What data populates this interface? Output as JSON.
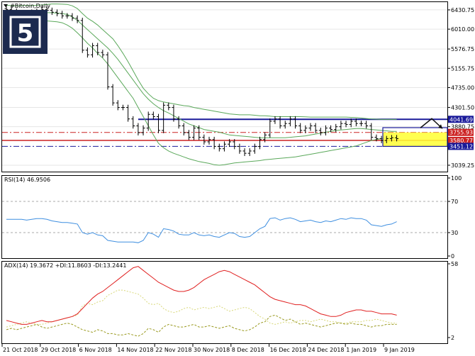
{
  "chart_data": {
    "type": "financial-chart",
    "title": "#Bitcoin,Daily",
    "price_axis_ticks": [
      "6430.75",
      "6010.00",
      "5576.75",
      "5155.75",
      "4735.00",
      "4301.50",
      "3880.75",
      "3039.25"
    ],
    "price_range": [
      2900,
      6600
    ],
    "x_tick_labels": [
      "21 Oct 2018",
      "29 Oct 2018",
      "6 Nov 2018",
      "14 Nov 2018",
      "22 Nov 2018",
      "30 Nov 2018",
      "8 Dec 2018",
      "16 Dec 2018",
      "24 Dec 2018",
      "1 Jan 2019",
      "9 Jan 2019"
    ],
    "candles_close": [
      6440,
      6400,
      6300,
      6320,
      6300,
      6380,
      6400,
      6440,
      6420,
      6380,
      6350,
      6300,
      6300,
      6250,
      6200,
      5550,
      5450,
      5650,
      5500,
      5450,
      4750,
      4400,
      4300,
      4300,
      4050,
      3900,
      3750,
      3850,
      4150,
      4100,
      3800,
      4350,
      4300,
      4050,
      3900,
      3750,
      3650,
      3850,
      3650,
      3550,
      3600,
      3450,
      3400,
      3500,
      3550,
      3450,
      3350,
      3300,
      3350,
      3450,
      3600,
      3700,
      4000,
      4050,
      3900,
      3950,
      4050,
      3900,
      3800,
      3850,
      3900,
      3800,
      3750,
      3850,
      3820,
      3880,
      3950,
      3930,
      4000,
      3950,
      3950,
      3900,
      3650,
      3620,
      3580,
      3620,
      3640,
      3620
    ],
    "bollinger_upper": [
      6530,
      6525,
      6520,
      6525,
      6525,
      6525,
      6530,
      6540,
      6550,
      6560,
      6560,
      6555,
      6550,
      6520,
      6460,
      6350,
      6250,
      6180,
      6100,
      6000,
      5900,
      5800,
      5650,
      5480,
      5300,
      5100,
      4900,
      4720,
      4600,
      4500,
      4450,
      4420,
      4400,
      4380,
      4360,
      4340,
      4330,
      4300,
      4280,
      4260,
      4240,
      4220,
      4200,
      4180,
      4160,
      4150,
      4140,
      4140,
      4140,
      4130,
      4120,
      4120,
      4110,
      4100,
      4100,
      4100,
      4100,
      4100,
      4100,
      4095,
      4090,
      4090,
      4090,
      4090,
      4090,
      4090,
      4090,
      4090,
      4085,
      4080,
      4070,
      4060,
      4050,
      4045,
      4040,
      4040,
      4040,
      4040
    ],
    "bollinger_middle": [
      6380,
      6380,
      6380,
      6380,
      6370,
      6370,
      6370,
      6370,
      6370,
      6370,
      6360,
      6350,
      6330,
      6280,
      6200,
      6100,
      6000,
      5900,
      5800,
      5700,
      5600,
      5480,
      5350,
      5200,
      5050,
      4900,
      4750,
      4600,
      4480,
      4380,
      4300,
      4230,
      4180,
      4120,
      4060,
      4000,
      3940,
      3900,
      3860,
      3820,
      3800,
      3780,
      3760,
      3730,
      3700,
      3690,
      3680,
      3670,
      3660,
      3650,
      3640,
      3640,
      3640,
      3640,
      3640,
      3640,
      3650,
      3660,
      3670,
      3680,
      3700,
      3720,
      3740,
      3760,
      3780,
      3800,
      3810,
      3820,
      3830,
      3840,
      3840,
      3830,
      3820,
      3810,
      3800,
      3790,
      3780,
      3780
    ],
    "bollinger_lower": [
      6250,
      6240,
      6230,
      6230,
      6220,
      6215,
      6210,
      6200,
      6190,
      6180,
      6170,
      6150,
      6100,
      6030,
      5930,
      5820,
      5700,
      5600,
      5480,
      5380,
      5250,
      5100,
      4950,
      4800,
      4650,
      4500,
      4300,
      4100,
      3900,
      3700,
      3520,
      3420,
      3350,
      3300,
      3260,
      3220,
      3180,
      3150,
      3120,
      3100,
      3080,
      3050,
      3040,
      3050,
      3070,
      3090,
      3100,
      3110,
      3120,
      3130,
      3140,
      3160,
      3170,
      3180,
      3190,
      3200,
      3210,
      3220,
      3240,
      3260,
      3280,
      3300,
      3320,
      3340,
      3360,
      3380,
      3400,
      3420,
      3440,
      3460,
      3500,
      3540,
      3580,
      3600,
      3620,
      3630,
      3640,
      3640
    ],
    "levels": [
      {
        "price": "4041.69",
        "color": "#1a1a9a",
        "style": "dash-dot"
      },
      {
        "price": "3755.93",
        "color": "#cc2222",
        "style": "dash-dot"
      },
      {
        "price": "3580.77",
        "color": "#cc2222",
        "style": "solid"
      },
      {
        "price": "3451.12",
        "color": "#1a1a9a",
        "style": "dash-dot"
      }
    ],
    "rsi": {
      "label": "RSI(14) 46.9506",
      "axis_ticks": [
        "100",
        "70",
        "30",
        "0"
      ],
      "values": [
        47,
        47,
        47,
        47,
        46,
        47,
        48,
        48,
        47,
        45,
        44,
        43,
        43,
        42,
        41,
        30,
        28,
        30,
        27,
        26,
        20,
        19,
        18,
        18,
        18,
        18,
        17,
        20,
        30,
        28,
        24,
        35,
        34,
        32,
        28,
        27,
        27,
        30,
        27,
        26,
        27,
        25,
        24,
        27,
        30,
        29,
        25,
        24,
        25,
        30,
        35,
        38,
        48,
        49,
        46,
        48,
        49,
        47,
        44,
        45,
        46,
        44,
        43,
        45,
        44,
        46,
        48,
        47,
        49,
        48,
        48,
        46,
        40,
        39,
        38,
        40,
        41,
        44
      ]
    },
    "adx": {
      "label": "ADX(14) 19.3672 +DI:11.8603 -DI:13.2441",
      "axis_ticks": [
        "58",
        "2"
      ],
      "adx_values": [
        15,
        14,
        13,
        12,
        12,
        13,
        14,
        15,
        14,
        14,
        15,
        16,
        17,
        18,
        20,
        24,
        28,
        32,
        35,
        37,
        40,
        43,
        46,
        49,
        52,
        55,
        56,
        53,
        50,
        47,
        44,
        42,
        40,
        38,
        37,
        37,
        38,
        40,
        43,
        46,
        48,
        50,
        52,
        53,
        52,
        50,
        48,
        46,
        44,
        42,
        39,
        36,
        33,
        31,
        30,
        29,
        28,
        27,
        27,
        26,
        24,
        22,
        20,
        19,
        18,
        18,
        19,
        21,
        22,
        23,
        23,
        22,
        22,
        21,
        20,
        20,
        20,
        19
      ],
      "plus_di": [
        8,
        9,
        8,
        9,
        10,
        11,
        12,
        10,
        9,
        10,
        11,
        12,
        13,
        12,
        10,
        8,
        7,
        6,
        8,
        7,
        5,
        5,
        4,
        4,
        5,
        4,
        3,
        5,
        9,
        8,
        6,
        10,
        12,
        11,
        10,
        10,
        11,
        12,
        10,
        10,
        11,
        10,
        9,
        10,
        11,
        9,
        8,
        7,
        8,
        10,
        13,
        14,
        18,
        19,
        17,
        15,
        16,
        14,
        12,
        13,
        12,
        11,
        10,
        11,
        12,
        13,
        13,
        12,
        13,
        12,
        12,
        11,
        10,
        11,
        11,
        12,
        12,
        12
      ],
      "minus_di": [
        10,
        11,
        12,
        13,
        14,
        13,
        12,
        12,
        13,
        14,
        15,
        16,
        17,
        18,
        19,
        26,
        28,
        27,
        29,
        30,
        34,
        36,
        38,
        38,
        37,
        36,
        35,
        32,
        28,
        27,
        28,
        24,
        22,
        21,
        22,
        24,
        25,
        23,
        24,
        25,
        24,
        25,
        26,
        24,
        22,
        23,
        24,
        25,
        24,
        21,
        18,
        16,
        13,
        12,
        13,
        14,
        13,
        14,
        15,
        15,
        14,
        15,
        16,
        15,
        14,
        14,
        13,
        13,
        14,
        14,
        14,
        15,
        15,
        16,
        15,
        14,
        13,
        13
      ]
    }
  },
  "watermark_letter": "5"
}
